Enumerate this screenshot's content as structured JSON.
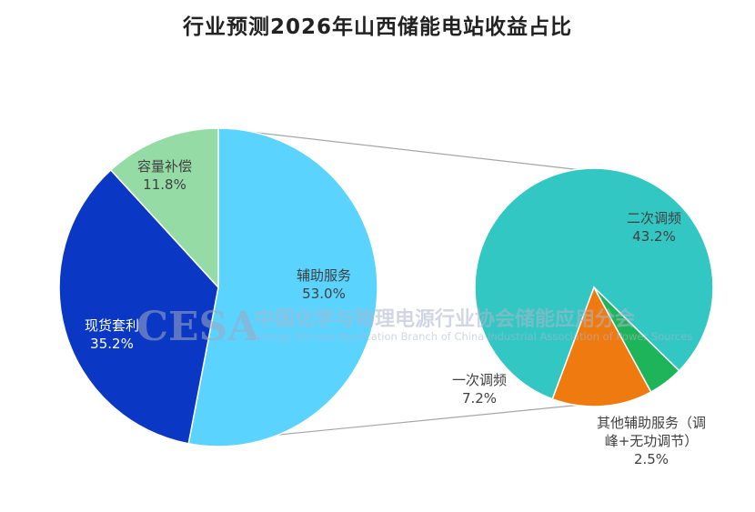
{
  "chart_data": {
    "type": "pie",
    "title": "行业预测2026年山西储能电站收益占比",
    "main_pie": {
      "slices": [
        {
          "label": "辅助服务",
          "value": 53.0,
          "value_label": "53.0%",
          "color": "#5bd3ff",
          "label_color": "#404040"
        },
        {
          "label": "现货套利",
          "value": 35.2,
          "value_label": "35.2%",
          "color": "#0a38c4",
          "label_color": "#ffffff"
        },
        {
          "label": "容量补偿",
          "value": 11.8,
          "value_label": "11.8%",
          "color": "#95dba6",
          "label_color": "#404040"
        }
      ]
    },
    "sub_pie": {
      "parent": "辅助服务",
      "slices": [
        {
          "label": "二次调频",
          "value": 43.2,
          "value_label": "43.2%",
          "color": "#33c7c4",
          "label_color": "#404040"
        },
        {
          "label": "一次调频",
          "value": 7.2,
          "value_label": "7.2%",
          "color": "#ef7b10",
          "label_color": "#404040"
        },
        {
          "label_lines": [
            "其他辅助服务（调",
            "峰+无功调节）"
          ],
          "value": 2.5,
          "value_label": "2.5%",
          "color": "#1db45a",
          "label_color": "#404040"
        }
      ]
    }
  },
  "watermark": {
    "logo": "CESA",
    "name_cn": "中国化学与物理电源行业协会储能应用分会",
    "name_en": "Energy Storage Application Branch of China Industrial Association of Power Sources",
    "color": "#9fa9c4"
  }
}
